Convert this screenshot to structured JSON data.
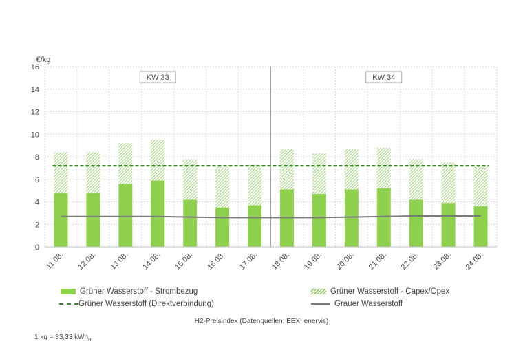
{
  "chart_data": {
    "type": "bar",
    "ylabel": "€/kg",
    "ylim": [
      0,
      16
    ],
    "yticks": [
      0,
      2,
      4,
      6,
      8,
      10,
      12,
      14,
      16
    ],
    "grid": true,
    "categories": [
      "11.08.",
      "12.08.",
      "13.08.",
      "14.08.",
      "15.08.",
      "16.08.",
      "17.08.",
      "18.08.",
      "19.08.",
      "20.08.",
      "21.08.",
      "22.08.",
      "23.08.",
      "24.08."
    ],
    "weeks": [
      {
        "label": "KW 33",
        "from": 0,
        "to": 6
      },
      {
        "label": "KW 34",
        "from": 7,
        "to": 13
      }
    ],
    "series": [
      {
        "name": "Grüner Wasserstoff - Strombezug",
        "kind": "bar-solid",
        "color": "#8fd14f",
        "values": [
          4.8,
          4.8,
          5.6,
          5.9,
          4.2,
          3.5,
          3.7,
          5.1,
          4.7,
          5.1,
          5.2,
          4.2,
          3.9,
          3.6
        ]
      },
      {
        "name": "Grüner Wasserstoff - Capex/Opex",
        "kind": "bar-hatch",
        "color": "#7cc24a",
        "values": [
          3.6,
          3.6,
          3.6,
          3.6,
          3.6,
          3.6,
          3.6,
          3.6,
          3.6,
          3.6,
          3.6,
          3.6,
          3.6,
          3.6
        ]
      },
      {
        "name": "Grüner Wasserstoff (Direktverbindung)",
        "kind": "line-dashed",
        "color": "#3d8a2a",
        "values": [
          7.2,
          7.2,
          7.2,
          7.2,
          7.2,
          7.2,
          7.2,
          7.2,
          7.2,
          7.2,
          7.2,
          7.2,
          7.2,
          7.2
        ]
      },
      {
        "name": "Grauer Wasserstoff",
        "kind": "line",
        "color": "#7a7a7a",
        "values": [
          2.7,
          2.7,
          2.7,
          2.7,
          2.65,
          2.6,
          2.6,
          2.6,
          2.6,
          2.65,
          2.7,
          2.75,
          2.75,
          2.75
        ]
      }
    ]
  },
  "caption": "H2-Preisindex (Datenquellen: EEX, enervis)",
  "note": {
    "text": "1 kg = 33,33 kWh",
    "sub": "Hi"
  }
}
